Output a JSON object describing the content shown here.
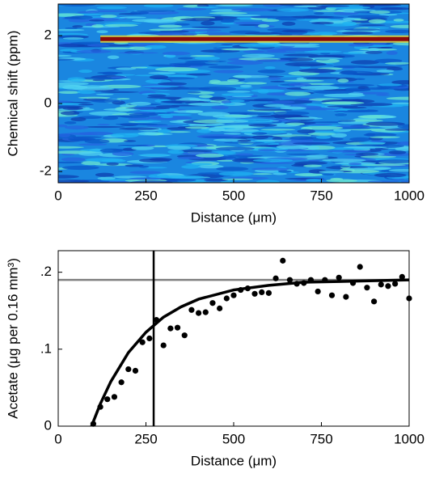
{
  "chart_data": [
    {
      "type": "heatmap",
      "xlabel": "Distance (μm)",
      "ylabel": "Chemical shift (ppm)",
      "xlim": [
        0,
        1000
      ],
      "xticks": [
        0,
        250,
        500,
        750,
        1000
      ],
      "ylim": [
        -2.33,
        2.93
      ],
      "yticks": [
        -2,
        0,
        2
      ],
      "ridge_x": [
        120,
        1000
      ],
      "ridge_y": [
        1.9,
        1.9
      ],
      "color": "#8b0a0a"
    },
    {
      "type": "scatter",
      "xlabel": "Distance (μm)",
      "ylabel": "Acetate (μg per 0.16 mm³)",
      "xlim": [
        0,
        1000
      ],
      "xticks": [
        0,
        250,
        500,
        750,
        1000
      ],
      "ylim": [
        0,
        0.228
      ],
      "yticks": [
        0,
        {
          "value": 0.1,
          "label": ".1"
        },
        {
          "value": 0.2,
          "label": ".2"
        }
      ],
      "x": [
        100,
        120,
        140,
        160,
        180,
        200,
        220,
        240,
        260,
        280,
        300,
        320,
        340,
        360,
        380,
        400,
        420,
        440,
        460,
        480,
        500,
        520,
        540,
        560,
        580,
        600,
        620,
        640,
        660,
        680,
        700,
        720,
        740,
        760,
        780,
        800,
        820,
        840,
        860,
        880,
        900,
        920,
        940,
        960,
        980,
        1000
      ],
      "values": [
        0.003,
        0.025,
        0.035,
        0.038,
        0.057,
        0.074,
        0.072,
        0.109,
        0.114,
        0.138,
        0.105,
        0.127,
        0.128,
        0.118,
        0.151,
        0.147,
        0.148,
        0.16,
        0.153,
        0.166,
        0.17,
        0.177,
        0.179,
        0.172,
        0.174,
        0.173,
        0.192,
        0.215,
        0.19,
        0.185,
        0.186,
        0.19,
        0.175,
        0.19,
        0.17,
        0.193,
        0.168,
        0.186,
        0.207,
        0.18,
        0.162,
        0.184,
        0.182,
        0.185,
        0.194,
        0.166
      ],
      "color": "#000000",
      "fit_x": [
        95,
        120,
        150,
        200,
        250,
        300,
        350,
        400,
        500,
        600,
        700,
        800,
        900,
        1000
      ],
      "fit_y": [
        0,
        0.029,
        0.058,
        0.0956,
        0.122,
        0.1416,
        0.155,
        0.165,
        0.177,
        0.183,
        0.187,
        0.188,
        0.189,
        0.19
      ],
      "hline": 0.19,
      "hline_color": "#808080",
      "vline": 272
    }
  ]
}
